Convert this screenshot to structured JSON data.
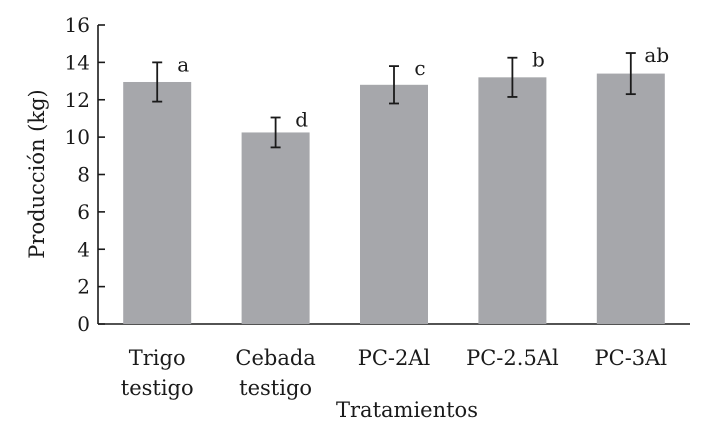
{
  "chart_data": {
    "type": "bar",
    "categories": [
      [
        "Trigo",
        "testigo"
      ],
      [
        "Cebada",
        "testigo"
      ],
      [
        "PC-2Al"
      ],
      [
        "PC-2.5Al"
      ],
      [
        "PC-3Al"
      ]
    ],
    "values": [
      12.95,
      10.25,
      12.8,
      13.2,
      13.4
    ],
    "error": [
      1.05,
      0.8,
      1.0,
      1.05,
      1.1
    ],
    "significance_labels": [
      "a",
      "d",
      "c",
      "b",
      "ab"
    ],
    "xlabel": "Tratamientos",
    "ylabel": "Producción (kg)",
    "ylim": [
      0,
      16
    ],
    "yticks": [
      "0",
      "2",
      "4",
      "6",
      "8",
      "10",
      "12",
      "14",
      "16"
    ],
    "bar_color": "#a6a7ab",
    "grid": false
  }
}
